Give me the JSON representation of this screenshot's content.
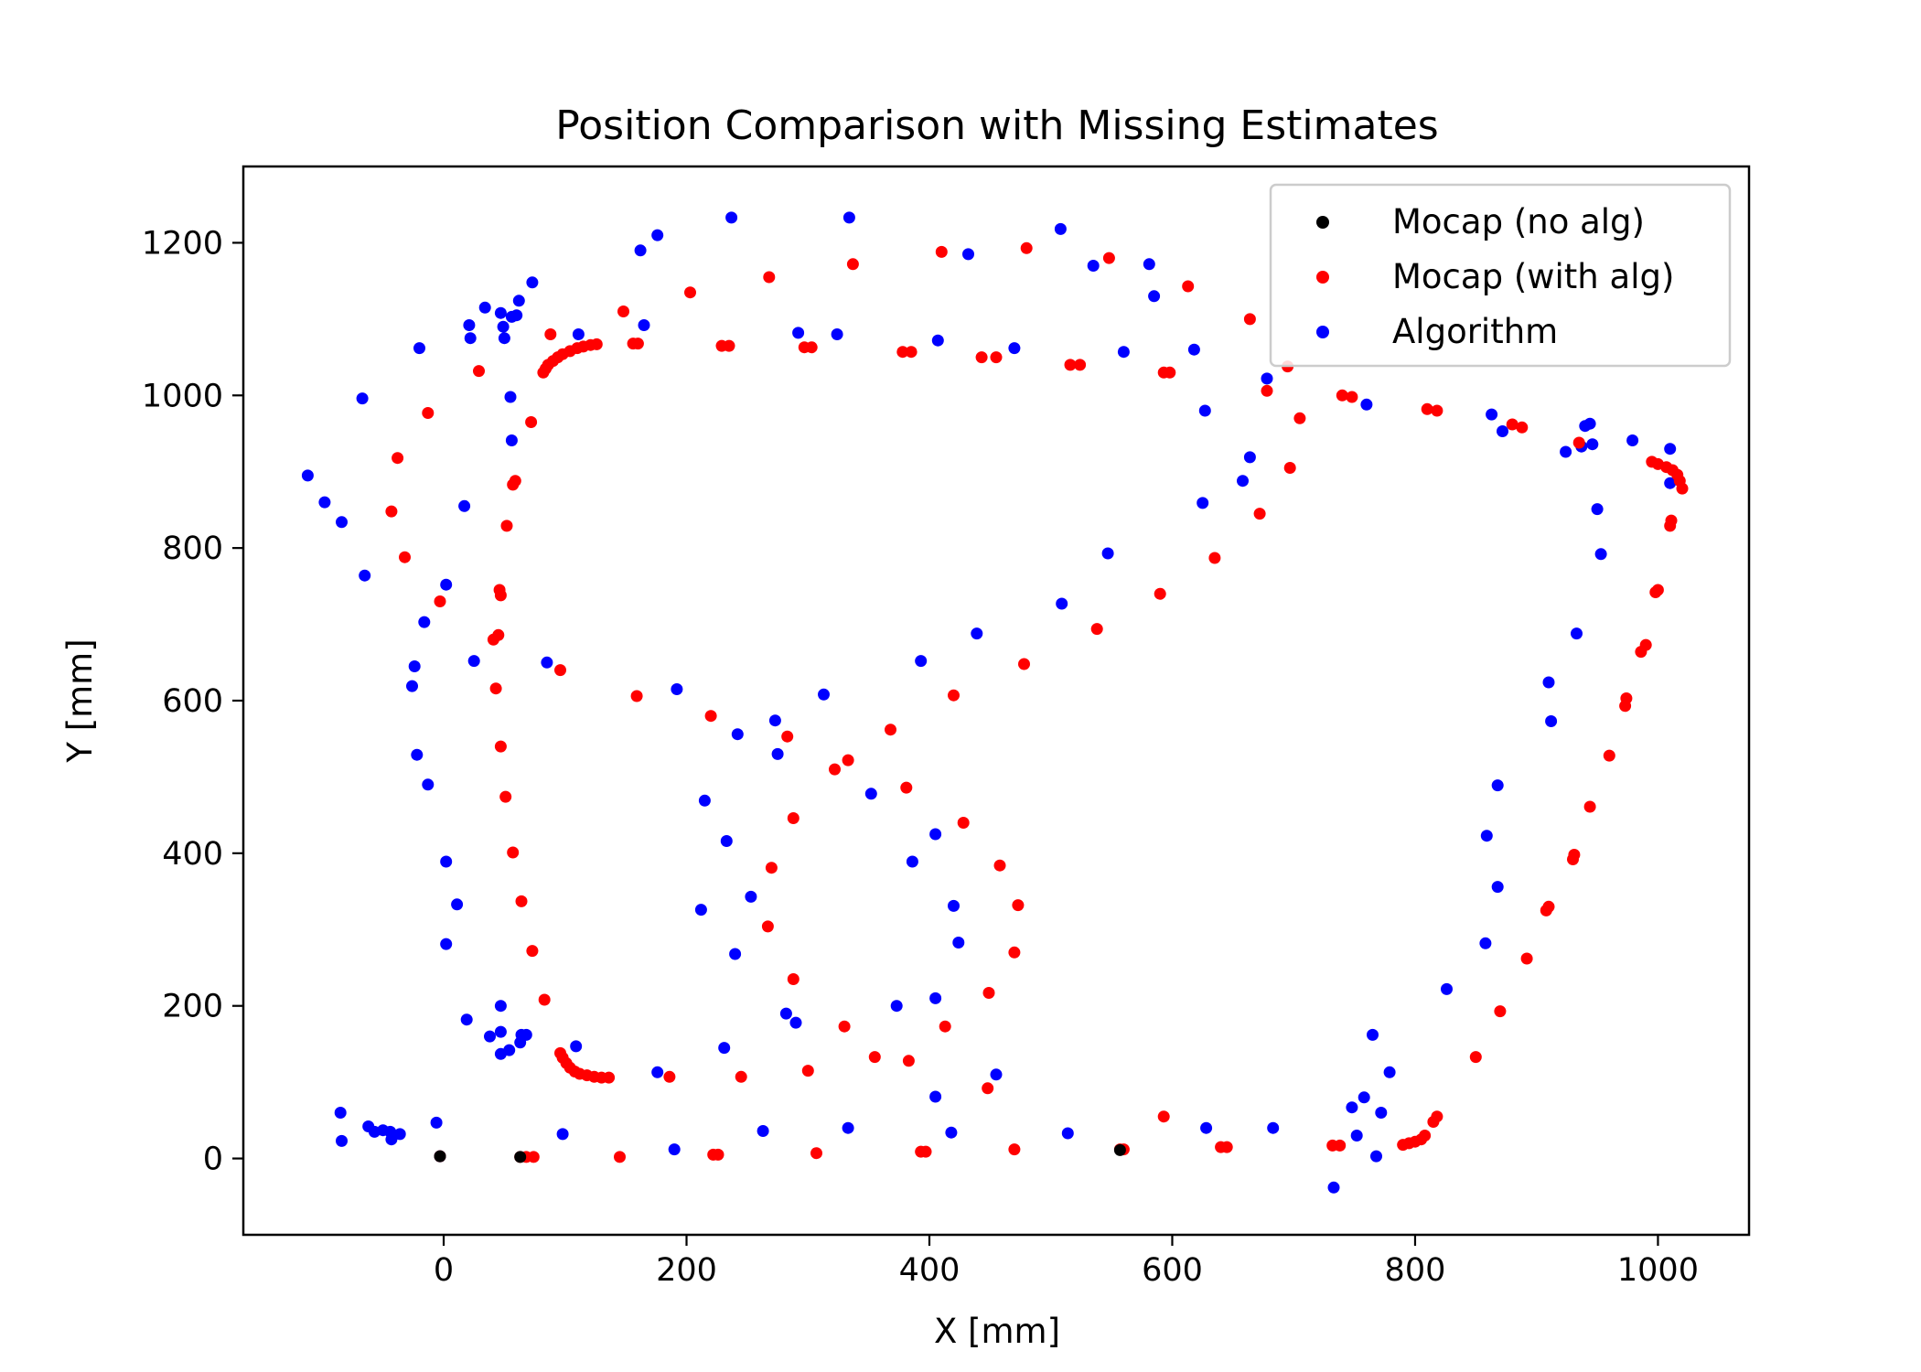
{
  "chart_data": {
    "type": "scatter",
    "title": "Position Comparison with Missing Estimates",
    "xlabel": "X [mm]",
    "ylabel": "Y [mm]",
    "xlim": [
      -165,
      1075
    ],
    "ylim": [
      -100,
      1300
    ],
    "xticks": [
      0,
      200,
      400,
      600,
      800,
      1000
    ],
    "yticks": [
      0,
      200,
      400,
      600,
      800,
      1000,
      1200
    ],
    "grid": false,
    "legend_position": "top-right",
    "series": [
      {
        "name": "Mocap (no alg)",
        "color": "#000000",
        "points": [
          [
            -3,
            3
          ],
          [
            63,
            2
          ],
          [
            557,
            11
          ]
        ]
      },
      {
        "name": "Mocap (with alg)",
        "color": "#ff0000",
        "points": [
          [
            -3,
            3
          ],
          [
            63,
            2
          ],
          [
            68,
            2
          ],
          [
            74,
            2
          ],
          [
            145,
            2
          ],
          [
            222,
            5
          ],
          [
            226,
            5
          ],
          [
            307,
            7
          ],
          [
            393,
            9
          ],
          [
            397,
            9
          ],
          [
            470,
            12
          ],
          [
            557,
            12
          ],
          [
            560,
            12
          ],
          [
            593,
            55
          ],
          [
            640,
            15
          ],
          [
            645,
            15
          ],
          [
            732,
            17
          ],
          [
            738,
            17
          ],
          [
            790,
            18
          ],
          [
            795,
            20
          ],
          [
            800,
            22
          ],
          [
            805,
            25
          ],
          [
            808,
            30
          ],
          [
            815,
            48
          ],
          [
            818,
            55
          ],
          [
            850,
            133
          ],
          [
            870,
            193
          ],
          [
            892,
            262
          ],
          [
            908,
            325
          ],
          [
            910,
            330
          ],
          [
            930,
            392
          ],
          [
            931,
            398
          ],
          [
            944,
            461
          ],
          [
            960,
            528
          ],
          [
            973,
            593
          ],
          [
            974,
            603
          ],
          [
            986,
            664
          ],
          [
            990,
            673
          ],
          [
            998,
            742
          ],
          [
            1000,
            745
          ],
          [
            1010,
            829
          ],
          [
            1011,
            836
          ],
          [
            1020,
            878
          ],
          [
            1018,
            888
          ],
          [
            1016,
            896
          ],
          [
            1012,
            902
          ],
          [
            1007,
            906
          ],
          [
            1000,
            910
          ],
          [
            995,
            913
          ],
          [
            935,
            938
          ],
          [
            880,
            962
          ],
          [
            888,
            958
          ],
          [
            810,
            982
          ],
          [
            818,
            980
          ],
          [
            740,
            1000
          ],
          [
            748,
            998
          ],
          [
            705,
            970
          ],
          [
            697,
            905
          ],
          [
            678,
            1006
          ],
          [
            672,
            845
          ],
          [
            664,
            1100
          ],
          [
            695,
            1038
          ],
          [
            635,
            787
          ],
          [
            613,
            1143
          ],
          [
            593,
            1030
          ],
          [
            598,
            1030
          ],
          [
            590,
            740
          ],
          [
            548,
            1180
          ],
          [
            538,
            694
          ],
          [
            524,
            1040
          ],
          [
            516,
            1040
          ],
          [
            480,
            1193
          ],
          [
            478,
            648
          ],
          [
            455,
            1050
          ],
          [
            443,
            1050
          ],
          [
            420,
            607
          ],
          [
            410,
            1188
          ],
          [
            385,
            1057
          ],
          [
            378,
            1057
          ],
          [
            368,
            562
          ],
          [
            337,
            1172
          ],
          [
            333,
            522
          ],
          [
            322,
            510
          ],
          [
            303,
            1063
          ],
          [
            297,
            1063
          ],
          [
            283,
            553
          ],
          [
            288,
            446
          ],
          [
            270,
            381
          ],
          [
            268,
            1155
          ],
          [
            267,
            304
          ],
          [
            288,
            235
          ],
          [
            300,
            115
          ],
          [
            330,
            173
          ],
          [
            355,
            133
          ],
          [
            383,
            128
          ],
          [
            413,
            173
          ],
          [
            448,
            92
          ],
          [
            449,
            217
          ],
          [
            458,
            384
          ],
          [
            473,
            332
          ],
          [
            470,
            270
          ],
          [
            428,
            440
          ],
          [
            381,
            486
          ],
          [
            235,
            1065
          ],
          [
            229,
            1065
          ],
          [
            220,
            580
          ],
          [
            203,
            1135
          ],
          [
            186,
            107
          ],
          [
            160,
            1068
          ],
          [
            156,
            1068
          ],
          [
            148,
            1110
          ],
          [
            159,
            606
          ],
          [
            245,
            107
          ],
          [
            126,
            1067
          ],
          [
            121,
            1066
          ],
          [
            115,
            1064
          ],
          [
            110,
            1062
          ],
          [
            104,
            1058
          ],
          [
            98,
            1054
          ],
          [
            94,
            1050
          ],
          [
            90,
            1045
          ],
          [
            86,
            1040
          ],
          [
            84,
            1035
          ],
          [
            82,
            1030
          ],
          [
            88,
            1080
          ],
          [
            72,
            965
          ],
          [
            59,
            888
          ],
          [
            57,
            883
          ],
          [
            52,
            829
          ],
          [
            46,
            745
          ],
          [
            47,
            738
          ],
          [
            45,
            686
          ],
          [
            41,
            680
          ],
          [
            43,
            616
          ],
          [
            47,
            540
          ],
          [
            51,
            474
          ],
          [
            57,
            401
          ],
          [
            64,
            337
          ],
          [
            73,
            272
          ],
          [
            83,
            208
          ],
          [
            96,
            138
          ],
          [
            98,
            132
          ],
          [
            101,
            125
          ],
          [
            104,
            119
          ],
          [
            108,
            114
          ],
          [
            112,
            111
          ],
          [
            118,
            109
          ],
          [
            124,
            107
          ],
          [
            130,
            106
          ],
          [
            136,
            106
          ],
          [
            96,
            640
          ],
          [
            -3,
            730
          ],
          [
            -13,
            977
          ],
          [
            -32,
            788
          ],
          [
            -38,
            918
          ],
          [
            -43,
            848
          ],
          [
            29,
            1032
          ]
        ]
      },
      {
        "name": "Algorithm",
        "color": "#0000ff",
        "points": [
          [
            -112,
            895
          ],
          [
            -98,
            860
          ],
          [
            -84,
            834
          ],
          [
            -85,
            60
          ],
          [
            -84,
            23
          ],
          [
            -65,
            764
          ],
          [
            -67,
            996
          ],
          [
            -62,
            42
          ],
          [
            -57,
            35
          ],
          [
            -50,
            37
          ],
          [
            -44,
            35
          ],
          [
            -43,
            25
          ],
          [
            -36,
            32
          ],
          [
            -6,
            47
          ],
          [
            -3,
            3
          ],
          [
            -20,
            1062
          ],
          [
            -16,
            703
          ],
          [
            -13,
            490
          ],
          [
            -22,
            529
          ],
          [
            -26,
            619
          ],
          [
            -24,
            645
          ],
          [
            2,
            752
          ],
          [
            2,
            389
          ],
          [
            2,
            281
          ],
          [
            11,
            333
          ],
          [
            17,
            855
          ],
          [
            19,
            182
          ],
          [
            21,
            1092
          ],
          [
            22,
            1075
          ],
          [
            25,
            652
          ],
          [
            34,
            1115
          ],
          [
            38,
            160
          ],
          [
            47,
            166
          ],
          [
            47,
            200
          ],
          [
            47,
            137
          ],
          [
            47,
            1108
          ],
          [
            49,
            1090
          ],
          [
            50,
            1075
          ],
          [
            56,
            1103
          ],
          [
            54,
            142
          ],
          [
            55,
            998
          ],
          [
            56,
            941
          ],
          [
            60,
            1105
          ],
          [
            62,
            1124
          ],
          [
            63,
            152
          ],
          [
            64,
            162
          ],
          [
            68,
            162
          ],
          [
            73,
            1148
          ],
          [
            85,
            650
          ],
          [
            98,
            32
          ],
          [
            109,
            147
          ],
          [
            111,
            1080
          ],
          [
            165,
            1092
          ],
          [
            162,
            1190
          ],
          [
            176,
            1210
          ],
          [
            176,
            113
          ],
          [
            190,
            12
          ],
          [
            192,
            615
          ],
          [
            212,
            326
          ],
          [
            215,
            469
          ],
          [
            231,
            145
          ],
          [
            233,
            416
          ],
          [
            237,
            1233
          ],
          [
            240,
            268
          ],
          [
            242,
            556
          ],
          [
            253,
            343
          ],
          [
            263,
            36
          ],
          [
            273,
            574
          ],
          [
            275,
            530
          ],
          [
            282,
            190
          ],
          [
            290,
            178
          ],
          [
            292,
            1082
          ],
          [
            313,
            608
          ],
          [
            324,
            1080
          ],
          [
            334,
            1233
          ],
          [
            333,
            40
          ],
          [
            352,
            478
          ],
          [
            373,
            200
          ],
          [
            386,
            389
          ],
          [
            393,
            652
          ],
          [
            405,
            81
          ],
          [
            405,
            210
          ],
          [
            405,
            425
          ],
          [
            407,
            1072
          ],
          [
            418,
            34
          ],
          [
            420,
            331
          ],
          [
            424,
            283
          ],
          [
            432,
            1185
          ],
          [
            439,
            688
          ],
          [
            455,
            110
          ],
          [
            470,
            1062
          ],
          [
            508,
            1218
          ],
          [
            509,
            727
          ],
          [
            514,
            33
          ],
          [
            547,
            793
          ],
          [
            535,
            1170
          ],
          [
            560,
            1057
          ],
          [
            581,
            1172
          ],
          [
            585,
            1130
          ],
          [
            618,
            1060
          ],
          [
            627,
            980
          ],
          [
            625,
            859
          ],
          [
            628,
            40
          ],
          [
            658,
            888
          ],
          [
            664,
            919
          ],
          [
            678,
            1022
          ],
          [
            683,
            40
          ],
          [
            733,
            -38
          ],
          [
            748,
            67
          ],
          [
            752,
            30
          ],
          [
            758,
            80
          ],
          [
            760,
            988
          ],
          [
            765,
            162
          ],
          [
            768,
            3
          ],
          [
            772,
            60
          ],
          [
            779,
            113
          ],
          [
            826,
            222
          ],
          [
            858,
            282
          ],
          [
            859,
            423
          ],
          [
            863,
            975
          ],
          [
            868,
            356
          ],
          [
            868,
            489
          ],
          [
            872,
            953
          ],
          [
            910,
            624
          ],
          [
            912,
            573
          ],
          [
            924,
            926
          ],
          [
            933,
            688
          ],
          [
            937,
            933
          ],
          [
            940,
            960
          ],
          [
            944,
            963
          ],
          [
            946,
            936
          ],
          [
            950,
            851
          ],
          [
            953,
            792
          ],
          [
            979,
            941
          ],
          [
            1010,
            930
          ],
          [
            1010,
            885
          ]
        ]
      }
    ]
  }
}
